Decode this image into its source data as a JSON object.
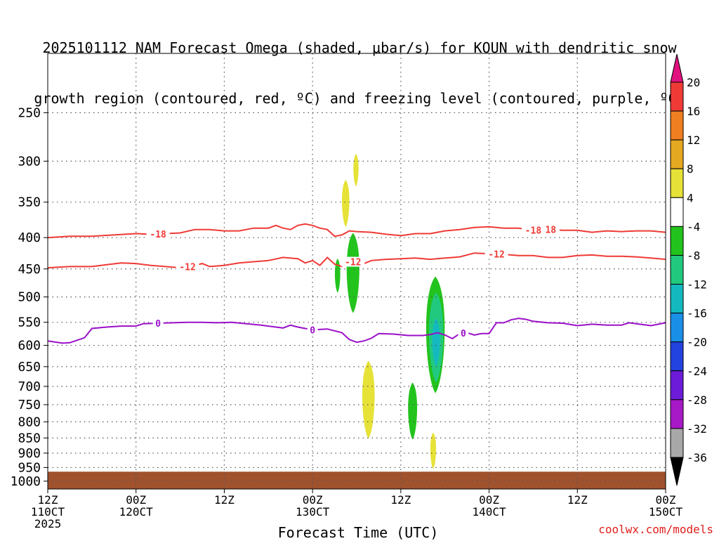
{
  "chart_data": {
    "type": "contour",
    "title_lines": [
      "2025101112 NAM Forecast Omega (shaded, μbar/s) for KOUN with dendritic snow",
      "growth region (contoured, red, ºC) and freezing level (contoured, purple, ºC)"
    ],
    "xlabel": "Forecast Time (UTC)",
    "ylabel": "",
    "y_scale": "log-pressure",
    "ylim": [
      1030,
      200
    ],
    "grid": true,
    "y_ticks": [
      250,
      300,
      350,
      400,
      450,
      500,
      550,
      600,
      650,
      700,
      750,
      800,
      850,
      900,
      950,
      1000
    ],
    "x_ticks": [
      {
        "hour": 0,
        "label": "12Z",
        "sub": "110CT",
        "year": "2025"
      },
      {
        "hour": 12,
        "label": "00Z",
        "sub": "120CT",
        "year": ""
      },
      {
        "hour": 24,
        "label": "12Z",
        "sub": "",
        "year": ""
      },
      {
        "hour": 36,
        "label": "00Z",
        "sub": "130CT",
        "year": ""
      },
      {
        "hour": 48,
        "label": "12Z",
        "sub": "",
        "year": ""
      },
      {
        "hour": 60,
        "label": "00Z",
        "sub": "140CT",
        "year": ""
      },
      {
        "hour": 72,
        "label": "12Z",
        "sub": "",
        "year": ""
      },
      {
        "hour": 84,
        "label": "00Z",
        "sub": "150CT",
        "year": ""
      }
    ],
    "xlim": [
      0,
      84
    ],
    "colorbar": {
      "levels": [
        20,
        16,
        12,
        8,
        4,
        -4,
        -8,
        -12,
        -16,
        -20,
        -24,
        -28,
        -32,
        -36
      ],
      "colors": [
        "#e0117e",
        "#ef3a36",
        "#ef7f20",
        "#e5a821",
        "#e6e237",
        "#ffffff",
        "#23c31d",
        "#21c97f",
        "#14b9c0",
        "#1a8fe8",
        "#2243e0",
        "#6c1bd8",
        "#a718c6",
        "#a8a8a8",
        "#000000"
      ]
    },
    "contours": [
      {
        "name": "-18",
        "color": "#ef3a36",
        "label_at": [
          15,
          68,
          66
        ],
        "points": [
          [
            0,
            400
          ],
          [
            3,
            398
          ],
          [
            6,
            398
          ],
          [
            9,
            396
          ],
          [
            12,
            394
          ],
          [
            14,
            395
          ],
          [
            16,
            394
          ],
          [
            18,
            393
          ],
          [
            20,
            388
          ],
          [
            22,
            388
          ],
          [
            24,
            390
          ],
          [
            26,
            390
          ],
          [
            28,
            386
          ],
          [
            30,
            386
          ],
          [
            31,
            382
          ],
          [
            32,
            386
          ],
          [
            33,
            388
          ],
          [
            34,
            382
          ],
          [
            35,
            380
          ],
          [
            36,
            382
          ],
          [
            37,
            386
          ],
          [
            38,
            388
          ],
          [
            39,
            398
          ],
          [
            40,
            396
          ],
          [
            41,
            390
          ],
          [
            42,
            391
          ],
          [
            44,
            392
          ],
          [
            46,
            395
          ],
          [
            48,
            397
          ],
          [
            50,
            394
          ],
          [
            52,
            394
          ],
          [
            54,
            390
          ],
          [
            56,
            388
          ],
          [
            58,
            385
          ],
          [
            60,
            384
          ],
          [
            62,
            386
          ],
          [
            64,
            386
          ],
          [
            66,
            389
          ],
          [
            68,
            388
          ],
          [
            70,
            389
          ],
          [
            72,
            389
          ],
          [
            74,
            392
          ],
          [
            76,
            390
          ],
          [
            78,
            391
          ],
          [
            80,
            390
          ],
          [
            82,
            390
          ],
          [
            84,
            392
          ]
        ]
      },
      {
        "name": "-12",
        "color": "#ef3a36",
        "label_at": [
          19,
          41.5,
          61
        ],
        "points": [
          [
            0,
            448
          ],
          [
            3,
            446
          ],
          [
            6,
            446
          ],
          [
            8,
            443
          ],
          [
            10,
            440
          ],
          [
            12,
            441
          ],
          [
            14,
            444
          ],
          [
            16,
            446
          ],
          [
            18,
            448
          ],
          [
            20,
            444
          ],
          [
            21,
            441
          ],
          [
            22,
            446
          ],
          [
            24,
            444
          ],
          [
            26,
            440
          ],
          [
            28,
            438
          ],
          [
            30,
            436
          ],
          [
            32,
            431
          ],
          [
            34,
            433
          ],
          [
            35,
            440
          ],
          [
            36,
            436
          ],
          [
            37,
            444
          ],
          [
            38,
            431
          ],
          [
            39,
            442
          ],
          [
            40,
            446
          ],
          [
            41,
            436
          ],
          [
            42,
            440
          ],
          [
            43,
            441
          ],
          [
            44,
            436
          ],
          [
            46,
            434
          ],
          [
            48,
            433
          ],
          [
            50,
            432
          ],
          [
            52,
            434
          ],
          [
            54,
            432
          ],
          [
            56,
            430
          ],
          [
            58,
            424
          ],
          [
            60,
            425
          ],
          [
            62,
            426
          ],
          [
            64,
            428
          ],
          [
            66,
            428
          ],
          [
            68,
            431
          ],
          [
            70,
            431
          ],
          [
            72,
            428
          ],
          [
            74,
            427
          ],
          [
            76,
            429
          ],
          [
            78,
            429
          ],
          [
            80,
            430
          ],
          [
            82,
            432
          ],
          [
            84,
            434
          ]
        ]
      },
      {
        "name": "0",
        "color": "#9a10c8",
        "label_at": [
          15,
          36,
          56.5
        ],
        "points": [
          [
            0,
            590
          ],
          [
            2,
            595
          ],
          [
            3,
            594
          ],
          [
            5,
            583
          ],
          [
            6,
            563
          ],
          [
            8,
            560
          ],
          [
            10,
            558
          ],
          [
            12,
            558
          ],
          [
            13,
            553
          ],
          [
            15,
            552
          ],
          [
            17,
            551
          ],
          [
            19,
            550
          ],
          [
            21,
            550
          ],
          [
            23,
            551
          ],
          [
            25,
            550
          ],
          [
            27,
            553
          ],
          [
            29,
            556
          ],
          [
            31,
            560
          ],
          [
            32,
            562
          ],
          [
            33,
            556
          ],
          [
            34,
            560
          ],
          [
            36,
            566
          ],
          [
            38,
            564
          ],
          [
            40,
            572
          ],
          [
            41,
            587
          ],
          [
            42,
            593
          ],
          [
            43,
            590
          ],
          [
            44,
            584
          ],
          [
            45,
            574
          ],
          [
            47,
            575
          ],
          [
            49,
            578
          ],
          [
            51,
            578
          ],
          [
            52,
            576
          ],
          [
            53,
            572
          ],
          [
            54,
            577
          ],
          [
            55,
            585
          ],
          [
            56,
            574
          ],
          [
            57,
            572
          ],
          [
            58,
            577
          ],
          [
            59,
            574
          ],
          [
            60,
            574
          ],
          [
            61,
            551
          ],
          [
            62,
            551
          ],
          [
            63,
            545
          ],
          [
            64,
            542
          ],
          [
            65,
            544
          ],
          [
            66,
            548
          ],
          [
            68,
            551
          ],
          [
            70,
            552
          ],
          [
            72,
            557
          ],
          [
            74,
            554
          ],
          [
            76,
            556
          ],
          [
            78,
            556
          ],
          [
            79,
            551
          ],
          [
            80,
            553
          ],
          [
            82,
            557
          ],
          [
            84,
            551
          ]
        ]
      }
    ],
    "shaded_regions": [
      {
        "value": "4 to 8",
        "color": "#e6e237",
        "center_hour": 40.5,
        "pmin": 322,
        "pmax": 384
      },
      {
        "value": "4 to 8",
        "color": "#e6e237",
        "center_hour": 41.9,
        "pmin": 292,
        "pmax": 330
      },
      {
        "value": "-4 to -8",
        "color": "#23c31d",
        "center_hour": 39.4,
        "pmin": 433,
        "pmax": 492
      },
      {
        "value": "-4 to -8",
        "color": "#23c31d",
        "center_hour": 41.5,
        "pmin": 393,
        "pmax": 531
      },
      {
        "value": "-4 to -8",
        "color": "#23c31d",
        "center_hour": 52.7,
        "pmin": 463,
        "pmax": 718
      },
      {
        "value": "-8 to -12",
        "color": "#21c97f",
        "center_hour": 52.8,
        "pmin": 492,
        "pmax": 690
      },
      {
        "value": "-12 to -16",
        "color": "#14b9c0",
        "center_hour": 52.8,
        "pmin": 542,
        "pmax": 650
      },
      {
        "value": "4 to 8",
        "color": "#e6e237",
        "center_hour": 43.6,
        "pmin": 636,
        "pmax": 852
      },
      {
        "value": "-4 to -8",
        "color": "#23c31d",
        "center_hour": 49.6,
        "pmin": 690,
        "pmax": 855
      },
      {
        "value": "4 to 8",
        "color": "#e6e237",
        "center_hour": 52.4,
        "pmin": 833,
        "pmax": 955
      }
    ],
    "ground": {
      "color": "#a0522d",
      "top_hpa": 965,
      "bottom_hpa": 1030
    }
  },
  "attribution": "coolwx.com/models"
}
